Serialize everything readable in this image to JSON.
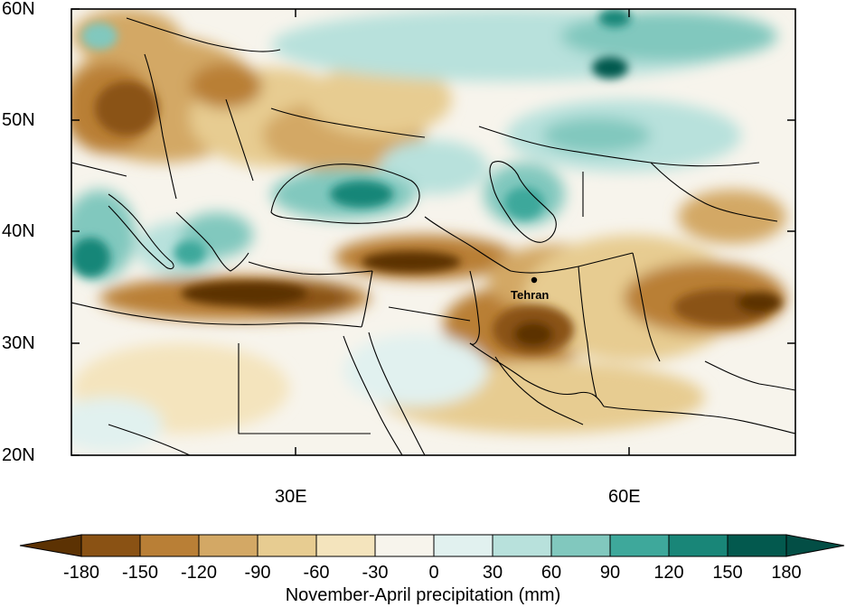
{
  "map": {
    "lat_labels": [
      "60N",
      "50N",
      "40N",
      "30N",
      "20N"
    ],
    "lon_labels": [
      "30E",
      "60E"
    ],
    "city": {
      "name": "Tehran"
    }
  },
  "colorbar": {
    "title": "November-April precipitation (mm)",
    "labels": [
      "-180",
      "-150",
      "-120",
      "-90",
      "-60",
      "-30",
      "0",
      "30",
      "60",
      "90",
      "120",
      "150",
      "180"
    ],
    "colors": [
      "#5c3203",
      "#8a5214",
      "#b97f36",
      "#d3a865",
      "#e7cc91",
      "#f4e4bd",
      "#f7f4ec",
      "#e1f1ef",
      "#b8e1dc",
      "#81c8be",
      "#3ea89b",
      "#198678",
      "#03594e",
      "#034e45"
    ]
  }
}
